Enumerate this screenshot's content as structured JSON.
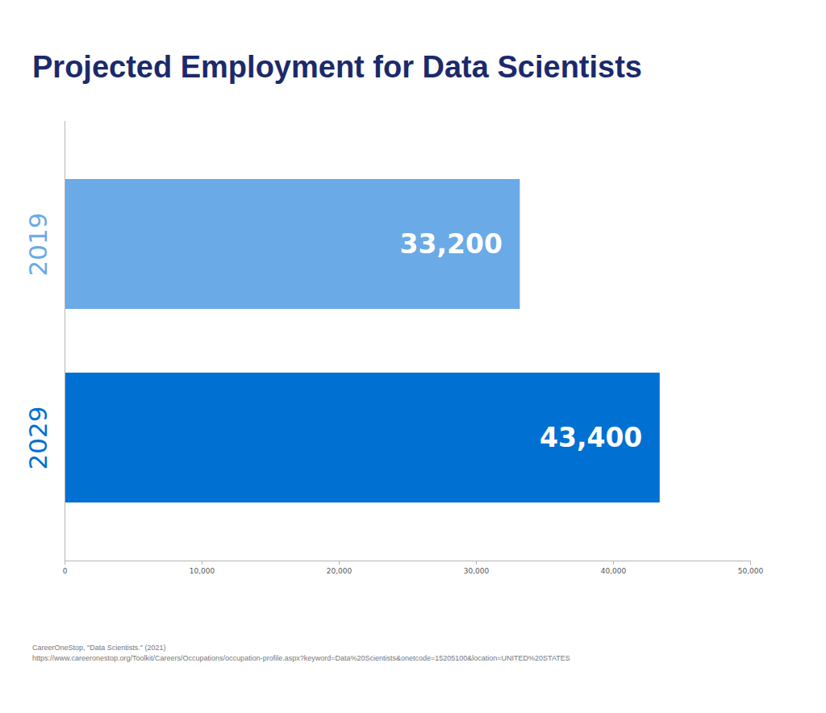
{
  "chart_data": {
    "type": "bar",
    "title": "Projected Employment for Data Scientists",
    "orientation": "horizontal",
    "categories": [
      "2019",
      "2029"
    ],
    "values": [
      33200,
      43400
    ],
    "value_labels": [
      "33,200",
      "43,400"
    ],
    "colors": [
      "#6aaae6",
      "#0070d2"
    ],
    "xlim": [
      0,
      50000
    ],
    "xticks": [
      0,
      {
        "value": 10000,
        "label": "10,000"
      },
      {
        "value": 20000,
        "label": "20,000"
      },
      {
        "value": 30000,
        "label": "30,000"
      },
      {
        "value": 40000,
        "label": "40,000"
      },
      {
        "value": 50000,
        "label": "50,000"
      }
    ],
    "grid": false,
    "data_labels": true,
    "caption": [
      "CareerOneStop, \"Data Scientists.\" (2021)",
      "https://www.careeronestop.org/Toolkit/Careers/Occupations/occupation-profile.aspx?keyword=Data%20Scientists&onetcode=15205100&location=UNITED%20STATES"
    ]
  }
}
